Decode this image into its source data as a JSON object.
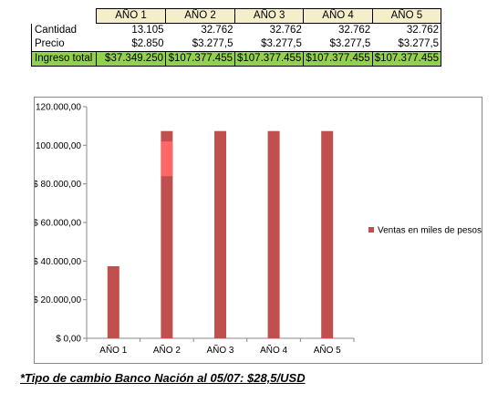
{
  "table": {
    "headers": [
      "AÑO 1",
      "AÑO 2",
      "AÑO 3",
      "AÑO 4",
      "AÑO 5"
    ],
    "rows": [
      {
        "label": "Cantidad",
        "values": [
          "13.105",
          "32.762",
          "32.762",
          "32.762",
          "32.762"
        ]
      },
      {
        "label": "Precio",
        "values": [
          "$2.850",
          "$3.277,5",
          "$3.277,5",
          "$3.277,5",
          "$3.277,5"
        ]
      },
      {
        "label": "Ingreso total",
        "values": [
          "$37.349.250",
          "$107.377.455",
          "$107.377.455",
          "$107.377.455",
          "$107.377.455"
        ]
      }
    ],
    "colors": {
      "header_bg": "#f4eecb",
      "total_bg": "#92d050"
    }
  },
  "chart_data": {
    "type": "bar",
    "categories": [
      "AÑO 1",
      "AÑO 2",
      "AÑO 3",
      "AÑO 4",
      "AÑO 5"
    ],
    "series": [
      {
        "name": "Ventas en miles de pesos",
        "values": [
          37349.25,
          107377.455,
          107377.455,
          107377.455,
          107377.455
        ],
        "color": "#c0504d"
      }
    ],
    "highlight": {
      "category": "AÑO 2",
      "from": 84000,
      "to": 102000,
      "color": "#ff6666"
    },
    "ylim": [
      0,
      120000
    ],
    "yticks": [
      "$ 0,00",
      "$ 20.000,00",
      "$ 40.000,00",
      "$ 60.000,00",
      "$ 80.000,00",
      "$ 100.000,00",
      "$ 120.000,00"
    ],
    "legend_position": "right",
    "grid": false
  },
  "footnote": "*Tipo de cambio Banco Nación al 05/07: $28,5/USD"
}
